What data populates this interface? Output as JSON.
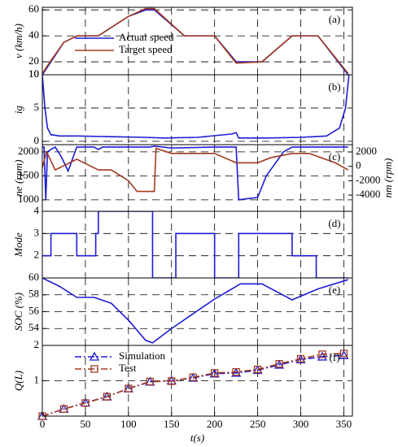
{
  "chart_data": [
    {
      "type": "line",
      "annotation": "(a)",
      "ylabel": "v (km/h)",
      "xlim": [
        0,
        360
      ],
      "ylim": [
        10,
        62
      ],
      "yticks": [
        10,
        20,
        40,
        60
      ],
      "grid": true,
      "legend": "top-left",
      "series": [
        {
          "name": "Actual speed",
          "color": "#1c1cd6",
          "x": [
            0,
            10,
            25,
            40,
            65,
            100,
            120,
            130,
            165,
            200,
            225,
            255,
            290,
            320,
            355
          ],
          "values": [
            10,
            20,
            35,
            40,
            40,
            55,
            60,
            60,
            40,
            40,
            20,
            20,
            40,
            40,
            10
          ]
        },
        {
          "name": "Target speed",
          "color": "#a33a1e",
          "x": [
            0,
            10,
            25,
            40,
            65,
            100,
            120,
            130,
            165,
            200,
            225,
            255,
            290,
            320,
            355
          ],
          "values": [
            11,
            21,
            35,
            40,
            40,
            55,
            61,
            61,
            40,
            40,
            19,
            20,
            40,
            40,
            11
          ]
        }
      ]
    },
    {
      "type": "line",
      "annotation": "(b)",
      "ylabel": "ig",
      "xlim": [
        0,
        360
      ],
      "ylim": [
        -0.5,
        10
      ],
      "yticks": [
        0,
        5,
        10
      ],
      "grid": true,
      "series": [
        {
          "color": "#1c1cd6",
          "x": [
            0,
            3,
            6,
            10,
            20,
            40,
            80,
            120,
            140,
            180,
            220,
            225,
            228,
            260,
            300,
            330,
            345,
            352,
            356
          ],
          "values": [
            10,
            5,
            2,
            1,
            0.8,
            0.8,
            0.7,
            0.6,
            0.5,
            0.6,
            1.1,
            1.3,
            0.5,
            0.5,
            0.6,
            0.8,
            2,
            5,
            10
          ]
        }
      ]
    },
    {
      "type": "line",
      "annotation": "(c)",
      "ylabel": "ne (rpm)",
      "y2label": "nm (rpm)",
      "xlim": [
        0,
        360
      ],
      "ylim": [
        760,
        2150
      ],
      "yticks": [
        1000,
        1500,
        2000
      ],
      "y2lim": [
        -6260,
        3020
      ],
      "y2ticks": [
        -4000,
        -2000,
        0,
        2000
      ],
      "grid": true,
      "series": [
        {
          "color": "#1c1cd6",
          "x": [
            0,
            2,
            4,
            6,
            10,
            15,
            22,
            30,
            40,
            60,
            65,
            70,
            125,
            130,
            150,
            200,
            225,
            228,
            250,
            260,
            280,
            290,
            355
          ],
          "values": [
            2100,
            2100,
            1000,
            2000,
            2050,
            2100,
            1900,
            1600,
            2100,
            2100,
            2050,
            2100,
            2100,
            2120,
            2080,
            2100,
            2100,
            1000,
            1050,
            1500,
            2000,
            2100,
            2100
          ]
        },
        {
          "color": "#a33a1e",
          "axis": "y2",
          "x": [
            0,
            5,
            15,
            40,
            65,
            80,
            100,
            110,
            130,
            132,
            150,
            200,
            225,
            250,
            265,
            290,
            310,
            340,
            355
          ],
          "values": [
            -200,
            2000,
            -500,
            1000,
            -500,
            -500,
            -2000,
            -3500,
            -3500,
            2500,
            1800,
            1800,
            500,
            500,
            1200,
            1800,
            1800,
            500,
            -500
          ]
        }
      ]
    },
    {
      "type": "line",
      "annotation": "(d)",
      "ylabel": "Mode",
      "xlim": [
        0,
        360
      ],
      "ylim": [
        1,
        4
      ],
      "yticks": [
        2,
        3,
        4
      ],
      "grid": true,
      "series": [
        {
          "color": "#1c1cd6",
          "x": [
            0,
            10,
            10,
            40,
            40,
            62,
            62,
            65,
            65,
            128,
            128,
            155,
            155,
            200,
            200,
            228,
            228,
            290,
            290,
            318,
            318,
            355
          ],
          "values": [
            2,
            2,
            3,
            3,
            2,
            2,
            3,
            3,
            4,
            4,
            1,
            1,
            3,
            3,
            1,
            1,
            3,
            3,
            2,
            2,
            1,
            1
          ]
        }
      ]
    },
    {
      "type": "line",
      "annotation": "(e)",
      "ylabel": "SOC (%)",
      "xlim": [
        0,
        360
      ],
      "ylim": [
        52,
        60
      ],
      "yticks": [
        54,
        56,
        58,
        60
      ],
      "grid": true,
      "series": [
        {
          "color": "#1c1cd6",
          "x": [
            0,
            20,
            40,
            60,
            80,
            100,
            120,
            128,
            150,
            200,
            230,
            255,
            290,
            320,
            355
          ],
          "values": [
            60,
            59,
            57.7,
            57.7,
            57,
            55,
            52.6,
            52.3,
            54,
            57.5,
            59.3,
            59.3,
            57.4,
            58.7,
            59.8
          ]
        }
      ]
    },
    {
      "type": "line",
      "annotation": "(f)",
      "ylabel": "Q(L)",
      "xlabel": "t(s)",
      "xlim": [
        0,
        360
      ],
      "xticks": [
        0,
        50,
        100,
        150,
        200,
        250,
        300,
        350
      ],
      "ylim": [
        0,
        2
      ],
      "yticks": [
        1,
        2
      ],
      "grid": true,
      "legend": "top-left",
      "series": [
        {
          "name": "Simulation",
          "color": "#1c1cd6",
          "marker": "triangle",
          "x": [
            0,
            25,
            50,
            75,
            100,
            125,
            150,
            175,
            200,
            225,
            250,
            275,
            300,
            325,
            350
          ],
          "values": [
            0,
            0.2,
            0.38,
            0.55,
            0.78,
            0.97,
            1.0,
            1.08,
            1.2,
            1.22,
            1.3,
            1.45,
            1.6,
            1.68,
            1.72
          ]
        },
        {
          "name": "Test",
          "color": "#a33a1e",
          "marker": "square",
          "x": [
            0,
            25,
            50,
            75,
            100,
            125,
            150,
            175,
            200,
            225,
            250,
            275,
            300,
            325,
            350
          ],
          "values": [
            0,
            0.2,
            0.37,
            0.55,
            0.78,
            0.98,
            0.99,
            1.1,
            1.22,
            1.25,
            1.32,
            1.48,
            1.62,
            1.75,
            1.77
          ]
        }
      ]
    }
  ]
}
